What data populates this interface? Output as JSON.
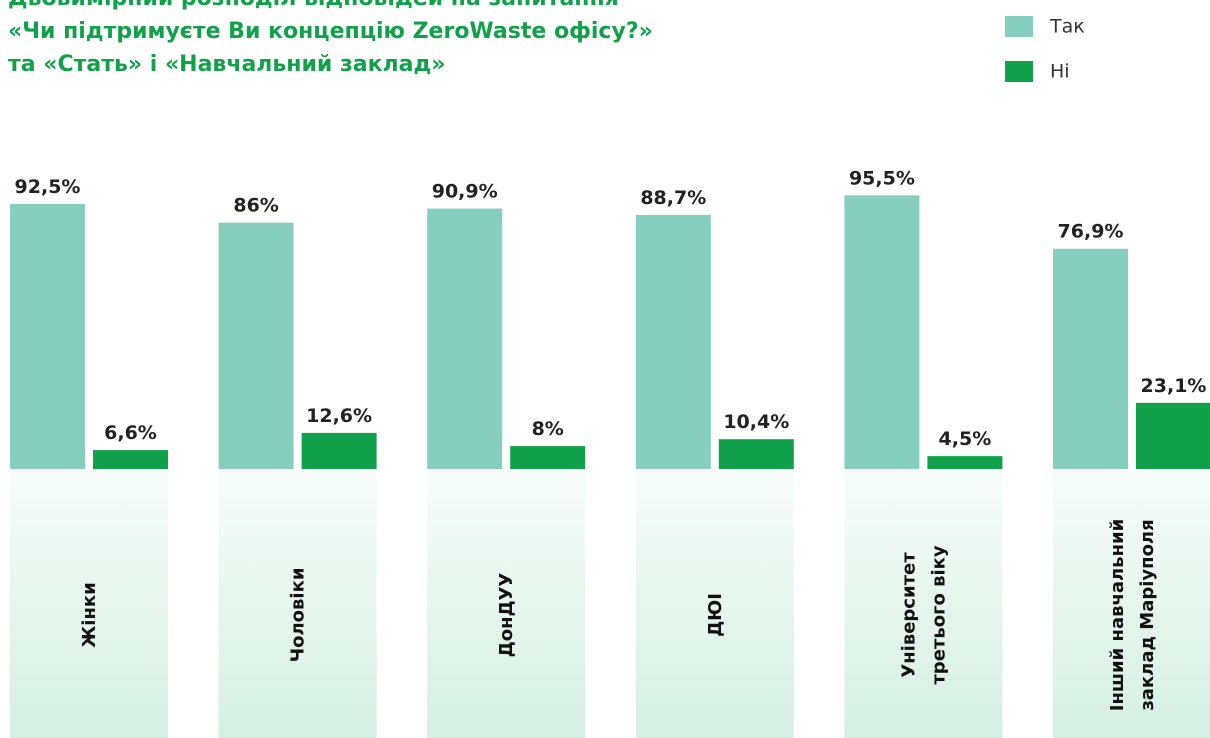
{
  "chart_data": {
    "type": "bar",
    "title": "Двовимірний розподіл відповідей на запитання\n«Чи підтримуєте Ви концепцію ZeroWaste офісу?»\nта «Стать» і «Навчальний заклад»",
    "categories": [
      "Жінки",
      "Чоловіки",
      "ДонДУУ",
      "ДЮІ",
      "Університет\nтретього віку",
      "Інший навчальний\nзаклад Маріуполя"
    ],
    "series": [
      {
        "name": "Так",
        "color": "#86cfbf",
        "values": [
          92.5,
          86,
          90.9,
          88.7,
          95.5,
          76.9
        ],
        "value_labels": [
          "92,5%",
          "86%",
          "90,9%",
          "88,7%",
          "95,5%",
          "76,9%"
        ]
      },
      {
        "name": "Ні",
        "color": "#12a14b",
        "values": [
          6.6,
          12.6,
          8,
          10.4,
          4.5,
          23.1
        ],
        "value_labels": [
          "6,6%",
          "12,6%",
          "8%",
          "10,4%",
          "4,5%",
          "23,1%"
        ]
      }
    ],
    "ylim": [
      0,
      100
    ],
    "legend": "top-right"
  }
}
